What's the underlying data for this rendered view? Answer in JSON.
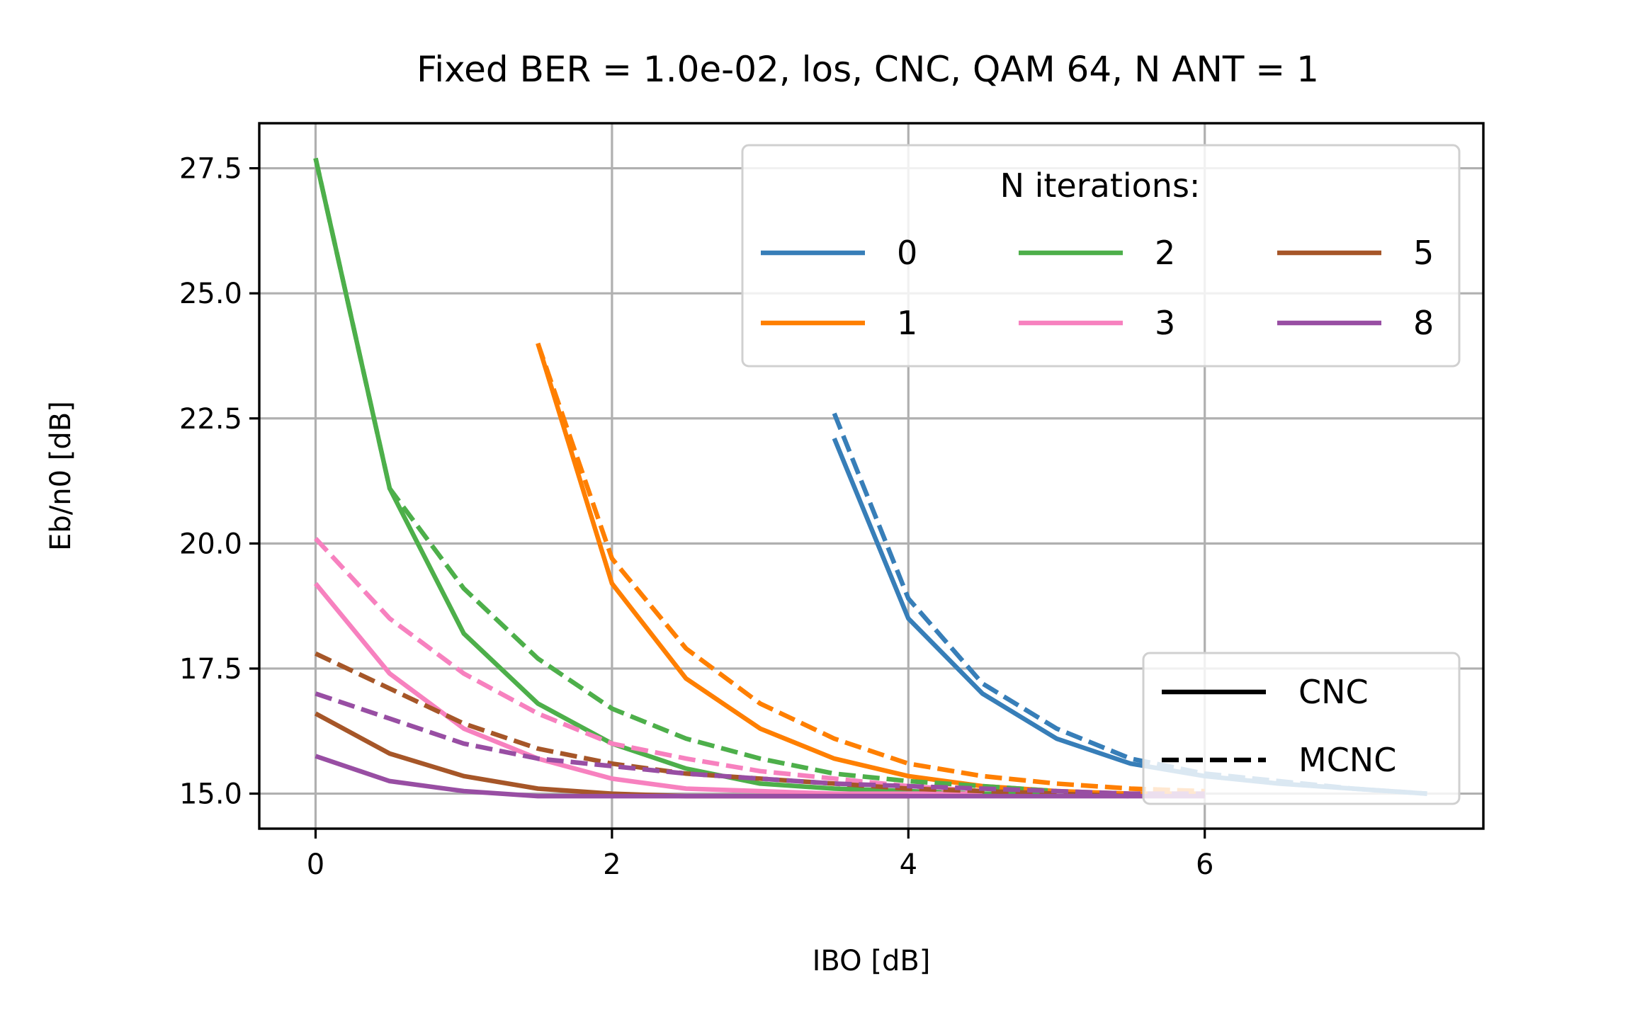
{
  "chart_data": {
    "type": "line",
    "title": "Fixed BER = 1.0e-02, los, CNC, QAM 64, N ANT = 1",
    "xlabel": "IBO [dB]",
    "ylabel": "Eb/n0 [dB]",
    "xlim": [
      -0.38,
      7.88
    ],
    "ylim": [
      14.3,
      28.4
    ],
    "xticks": [
      0,
      2,
      4,
      6
    ],
    "xtick_labels": [
      "0",
      "2",
      "4",
      "6"
    ],
    "yticks": [
      15.0,
      17.5,
      20.0,
      22.5,
      25.0,
      27.5
    ],
    "ytick_labels": [
      "15.0",
      "17.5",
      "20.0",
      "22.5",
      "25.0",
      "27.5"
    ],
    "grid": true,
    "legend_iterations": {
      "title": "N iterations:",
      "placement": "top-right",
      "entries": [
        {
          "label": "0",
          "color": "#377eb8"
        },
        {
          "label": "1",
          "color": "#ff7f00"
        },
        {
          "label": "2",
          "color": "#4daf4a"
        },
        {
          "label": "3",
          "color": "#f781bf"
        },
        {
          "label": "5",
          "color": "#a65628"
        },
        {
          "label": "8",
          "color": "#984ea3"
        }
      ]
    },
    "legend_method": {
      "placement": "bottom-right",
      "entries": [
        {
          "label": "CNC",
          "style": "solid"
        },
        {
          "label": "MCNC",
          "style": "dashed"
        }
      ]
    },
    "series": [
      {
        "iterations": "0",
        "method": "CNC",
        "color": "#377eb8",
        "style": "solid",
        "x": [
          3.5,
          4.0,
          4.5,
          5.0,
          5.5,
          6.0,
          6.5,
          7.0,
          7.5
        ],
        "y": [
          22.1,
          18.5,
          17.0,
          16.1,
          15.6,
          15.35,
          15.2,
          15.1,
          15.0
        ]
      },
      {
        "iterations": "0",
        "method": "MCNC",
        "color": "#377eb8",
        "style": "dashed",
        "x": [
          3.5,
          4.0,
          4.5,
          5.0,
          5.5,
          6.0,
          6.5,
          7.0,
          7.5
        ],
        "y": [
          22.6,
          18.9,
          17.2,
          16.3,
          15.7,
          15.4,
          15.25,
          15.1,
          15.0
        ]
      },
      {
        "iterations": "1",
        "method": "CNC",
        "color": "#ff7f00",
        "style": "solid",
        "x": [
          1.5,
          2.0,
          2.5,
          3.0,
          3.5,
          4.0,
          4.5,
          5.0,
          5.5,
          6.0
        ],
        "y": [
          24.0,
          19.2,
          17.3,
          16.3,
          15.7,
          15.35,
          15.15,
          15.05,
          15.0,
          15.0
        ]
      },
      {
        "iterations": "1",
        "method": "MCNC",
        "color": "#ff7f00",
        "style": "dashed",
        "x": [
          1.5,
          2.0,
          2.5,
          3.0,
          3.5,
          4.0,
          4.5,
          5.0,
          5.5,
          6.0
        ],
        "y": [
          24.0,
          19.7,
          17.9,
          16.8,
          16.1,
          15.6,
          15.35,
          15.2,
          15.1,
          15.05
        ]
      },
      {
        "iterations": "2",
        "method": "CNC",
        "color": "#4daf4a",
        "style": "solid",
        "x": [
          0.0,
          0.5,
          1.0,
          1.5,
          2.0,
          2.5,
          3.0,
          3.5,
          4.0,
          4.5,
          5.0
        ],
        "y": [
          27.7,
          21.1,
          18.2,
          16.8,
          16.0,
          15.5,
          15.2,
          15.1,
          15.05,
          15.0,
          15.0
        ]
      },
      {
        "iterations": "2",
        "method": "MCNC",
        "color": "#4daf4a",
        "style": "dashed",
        "x": [
          0.0,
          0.5,
          1.0,
          1.5,
          2.0,
          2.5,
          3.0,
          3.5,
          4.0,
          4.5,
          5.0
        ],
        "y": [
          27.7,
          21.1,
          19.1,
          17.7,
          16.7,
          16.1,
          15.7,
          15.4,
          15.25,
          15.15,
          15.05
        ]
      },
      {
        "iterations": "3",
        "method": "CNC",
        "color": "#f781bf",
        "style": "solid",
        "x": [
          0.0,
          0.5,
          1.0,
          1.5,
          2.0,
          2.5,
          3.0,
          3.5,
          4.0,
          4.5
        ],
        "y": [
          19.2,
          17.4,
          16.3,
          15.7,
          15.3,
          15.1,
          15.05,
          15.0,
          15.0,
          15.0
        ]
      },
      {
        "iterations": "3",
        "method": "MCNC",
        "color": "#f781bf",
        "style": "dashed",
        "x": [
          0.0,
          0.5,
          1.0,
          1.5,
          2.0,
          2.5,
          3.0,
          3.5,
          4.0,
          4.5
        ],
        "y": [
          20.1,
          18.5,
          17.4,
          16.6,
          16.0,
          15.7,
          15.45,
          15.3,
          15.15,
          15.05
        ]
      },
      {
        "iterations": "5",
        "method": "CNC",
        "color": "#a65628",
        "style": "solid",
        "x": [
          0.0,
          0.5,
          1.0,
          1.5,
          2.0,
          2.5,
          3.0,
          3.5,
          4.0
        ],
        "y": [
          16.6,
          15.8,
          15.35,
          15.1,
          15.0,
          14.95,
          14.95,
          14.95,
          14.95
        ]
      },
      {
        "iterations": "5",
        "method": "MCNC",
        "color": "#a65628",
        "style": "dashed",
        "x": [
          0.0,
          0.5,
          1.0,
          1.5,
          2.0,
          2.5,
          3.0,
          3.5,
          4.0,
          4.5,
          5.0,
          5.5
        ],
        "y": [
          17.8,
          17.1,
          16.4,
          15.9,
          15.6,
          15.4,
          15.3,
          15.2,
          15.1,
          15.05,
          15.0,
          14.95
        ]
      },
      {
        "iterations": "8",
        "method": "CNC",
        "color": "#984ea3",
        "style": "solid",
        "x": [
          0.0,
          0.5,
          1.0,
          1.5,
          2.0,
          2.5,
          3.0,
          3.5,
          4.0,
          4.5,
          5.0,
          5.5,
          6.0
        ],
        "y": [
          15.75,
          15.25,
          15.05,
          14.95,
          14.95,
          14.95,
          14.95,
          14.95,
          14.95,
          14.95,
          14.95,
          14.95,
          14.95
        ]
      },
      {
        "iterations": "8",
        "method": "MCNC",
        "color": "#984ea3",
        "style": "dashed",
        "x": [
          0.0,
          0.5,
          1.0,
          1.5,
          2.0,
          2.5,
          3.0,
          3.5,
          4.0,
          4.5,
          5.0,
          5.5,
          6.0
        ],
        "y": [
          17.0,
          16.5,
          16.0,
          15.7,
          15.55,
          15.4,
          15.3,
          15.2,
          15.15,
          15.1,
          15.05,
          15.0,
          15.0
        ]
      }
    ]
  }
}
